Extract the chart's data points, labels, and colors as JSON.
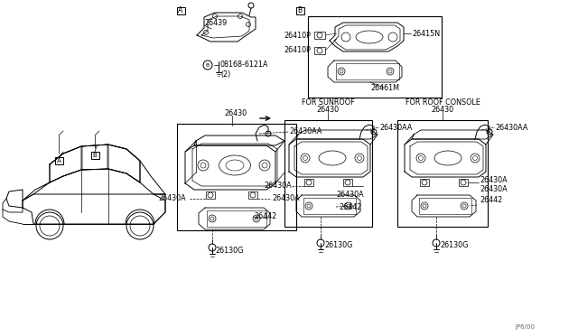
{
  "bg_color": "#ffffff",
  "line_color": "#000000",
  "text_color": "#000000",
  "fig_width": 6.4,
  "fig_height": 3.72,
  "dpi": 100,
  "watermark": "JP6/00",
  "parts": {
    "A": "A",
    "B": "B",
    "part_26439": "26439",
    "part_08168_6121A": "08168-6121A",
    "part_08168_note": "(2)",
    "part_26430": "26430",
    "part_26430AA": "26430AA",
    "part_26430A_left": "26430A",
    "part_26430A_right": "26430A",
    "part_26442": "26442",
    "part_26130G": "26130G",
    "part_26410P_1": "26410P",
    "part_26410P_2": "26410P",
    "part_26415N": "26415N",
    "part_26461M": "26461M",
    "for_sunroof": "FOR SUNROOF",
    "for_roof_console": "FOR ROOF CONSOLE"
  }
}
